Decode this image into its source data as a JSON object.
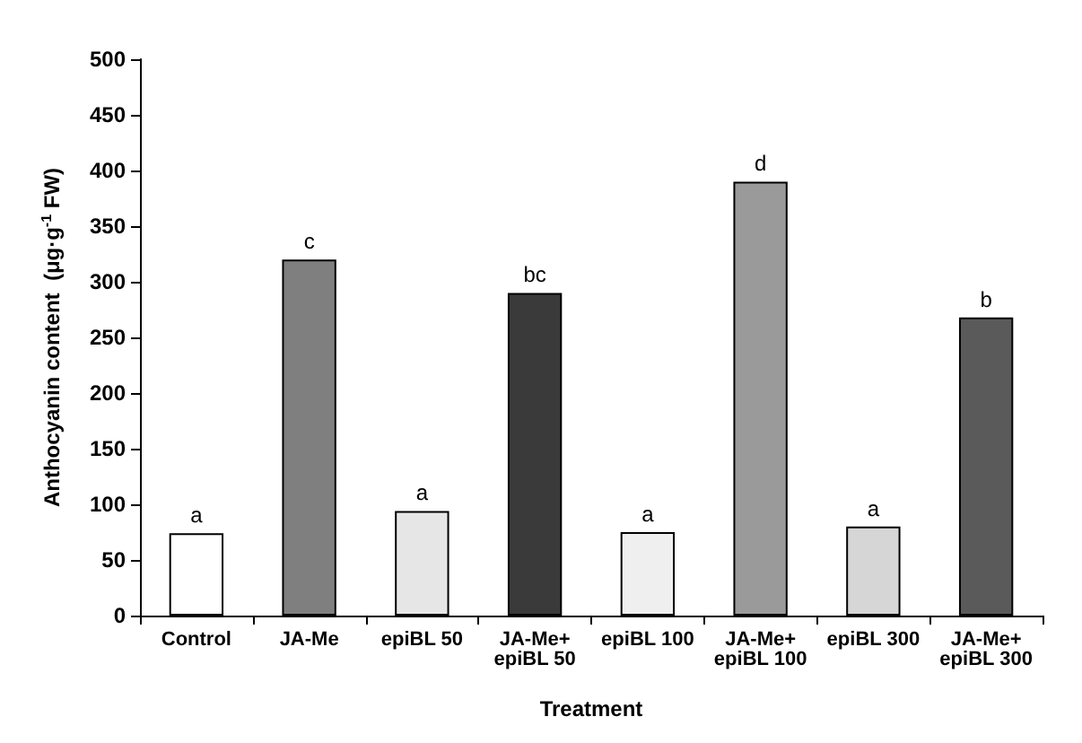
{
  "chart_data": {
    "type": "bar",
    "xlabel": "Treatment",
    "ylabel": "Anthocyanin content  (μg·g$^{-1}$ FW)",
    "categories": [
      "Control",
      "JA-Me",
      "epiBL 50",
      "JA-Me+\nepiBL 50",
      "epiBL 100",
      "JA-Me+\nepiBL 100",
      "epiBL 300",
      "JA-Me+\nepiBL 300"
    ],
    "values": [
      74,
      320,
      94,
      290,
      75,
      390,
      80,
      268
    ],
    "colors": [
      "#ffffff",
      "#7f7f7f",
      "#e6e6e6",
      "#3a3a3a",
      "#efefef",
      "#9a9a9a",
      "#d6d6d6",
      "#5a5a5a"
    ],
    "ylim": [
      0,
      500
    ],
    "yticks": [
      0,
      50,
      100,
      150,
      200,
      250,
      300,
      350,
      400,
      450,
      500
    ],
    "grid": false,
    "annotations": [
      {
        "text": "a",
        "x": "Control",
        "y": 74
      },
      {
        "text": "c",
        "x": "JA-Me",
        "y": 320
      },
      {
        "text": "a",
        "x": "epiBL 50",
        "y": 94
      },
      {
        "text": "bc",
        "x": "JA-Me+\nepiBL 50",
        "y": 290
      },
      {
        "text": "a",
        "x": "epiBL 100",
        "y": 75
      },
      {
        "text": "d",
        "x": "JA-Me+\nepiBL 100",
        "y": 390
      },
      {
        "text": "a",
        "x": "epiBL 300",
        "y": 80
      },
      {
        "text": "b",
        "x": "JA-Me+\nepiBL 300",
        "y": 268
      }
    ]
  }
}
